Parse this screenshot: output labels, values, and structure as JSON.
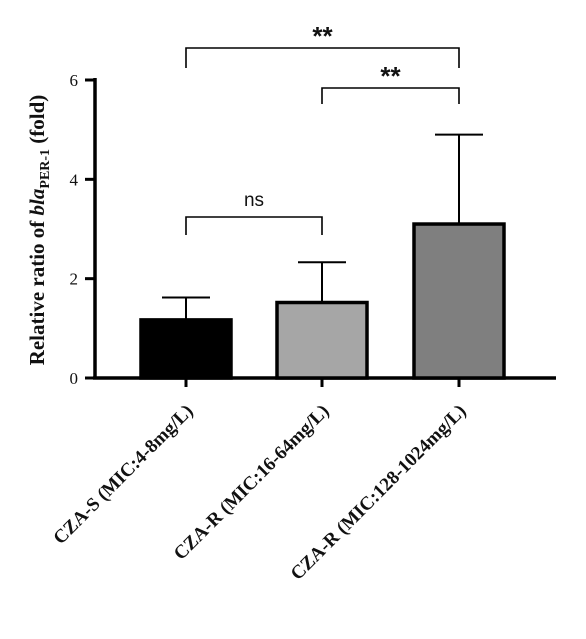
{
  "chart_data": {
    "type": "bar",
    "title": "",
    "ylabel": {
      "prefix": "Relative ratio of ",
      "gene": "bla",
      "gene_subscript": "PER-1",
      "suffix": " (fold)"
    },
    "xlabel": "",
    "categories": [
      "CZA-S (MIC:4-8mg/L)",
      "CZA-R (MIC:16-64mg/L)",
      "CZA-R (MIC:128-1024mg/L)"
    ],
    "values": [
      1.17,
      1.52,
      3.1
    ],
    "error_upper": [
      1.62,
      2.33,
      4.9
    ],
    "bar_colors": [
      "#000000",
      "#a6a6a6",
      "#7f7f7f"
    ],
    "ylim": [
      0,
      6
    ],
    "yticks": [
      0,
      2,
      4,
      6
    ],
    "grid": false,
    "significance": [
      {
        "from": 0,
        "to": 1,
        "label": "ns"
      },
      {
        "from": 1,
        "to": 2,
        "label": "**"
      },
      {
        "from": 0,
        "to": 2,
        "label": "**"
      }
    ]
  }
}
